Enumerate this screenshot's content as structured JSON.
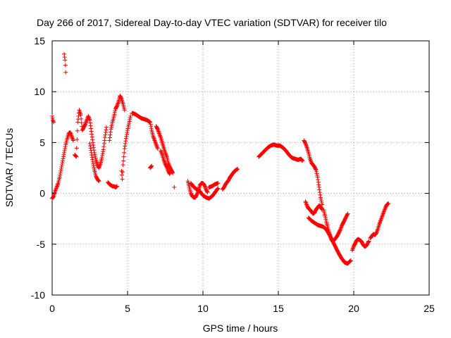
{
  "chart_data": {
    "type": "scatter",
    "title": "Day 266 of 2017, Sidereal Day-to-day VTEC variation (SDTVAR) for receiver tilo",
    "xlabel": "GPS time / hours",
    "ylabel": "SDTVAR / TECUs",
    "xlim": [
      0,
      25
    ],
    "ylim": [
      -10,
      15
    ],
    "xticks": [
      0,
      5,
      10,
      15,
      20,
      25
    ],
    "yticks": [
      -10,
      -5,
      0,
      5,
      10,
      15
    ],
    "grid": true,
    "marker": "+",
    "color": "#ff0000",
    "series": [
      {
        "name": "SDTVAR",
        "segments": [
          [
            [
              0.0,
              -0.5
            ],
            [
              0.1,
              -0.3
            ],
            [
              0.2,
              0.2
            ],
            [
              0.3,
              0.6
            ],
            [
              0.4,
              1.0
            ],
            [
              0.5,
              1.6
            ],
            [
              0.6,
              2.4
            ],
            [
              0.7,
              3.2
            ],
            [
              0.8,
              4.0
            ],
            [
              0.9,
              4.8
            ],
            [
              1.0,
              5.4
            ],
            [
              1.1,
              5.9
            ],
            [
              1.2,
              6.0
            ],
            [
              1.3,
              5.6
            ],
            [
              1.4,
              5.2
            ]
          ],
          [
            [
              0.0,
              7.6
            ],
            [
              0.05,
              7.2
            ],
            [
              0.1,
              7.0
            ]
          ],
          [
            [
              0.8,
              13.7
            ],
            [
              0.85,
              13.1
            ],
            [
              0.88,
              12.6
            ],
            [
              0.9,
              11.9
            ]
          ],
          [
            [
              1.5,
              3.8
            ],
            [
              1.6,
              3.6
            ],
            [
              1.7,
              7.0
            ],
            [
              1.8,
              8.2
            ],
            [
              1.9,
              7.7
            ],
            [
              2.0,
              6.2
            ],
            [
              2.2,
              6.8
            ],
            [
              2.4,
              7.6
            ],
            [
              2.5,
              7.2
            ],
            [
              2.6,
              6.1
            ],
            [
              2.7,
              5.0
            ],
            [
              2.8,
              4.0
            ],
            [
              2.9,
              3.3
            ],
            [
              3.0,
              2.8
            ],
            [
              3.1,
              2.5
            ],
            [
              3.2,
              2.9
            ],
            [
              3.3,
              3.5
            ],
            [
              3.4,
              4.3
            ],
            [
              3.5,
              5.5
            ],
            [
              3.6,
              6.5
            ]
          ],
          [
            [
              2.5,
              4.9
            ],
            [
              2.6,
              4.0
            ],
            [
              2.7,
              3.1
            ],
            [
              2.8,
              2.3
            ],
            [
              2.9,
              1.7
            ],
            [
              3.0,
              1.4
            ],
            [
              3.1,
              1.2
            ]
          ],
          [
            [
              3.7,
              1.1
            ],
            [
              3.8,
              0.9
            ],
            [
              3.9,
              0.8
            ],
            [
              4.0,
              0.7
            ],
            [
              4.1,
              0.7
            ],
            [
              4.2,
              0.6
            ],
            [
              4.3,
              0.7
            ]
          ],
          [
            [
              3.8,
              5.2
            ],
            [
              3.9,
              6.3
            ],
            [
              4.0,
              7.0
            ],
            [
              4.1,
              7.6
            ],
            [
              4.2,
              8.3
            ],
            [
              4.3,
              8.6
            ],
            [
              4.4,
              9.0
            ],
            [
              4.5,
              9.6
            ],
            [
              4.6,
              9.3
            ],
            [
              4.7,
              8.8
            ],
            [
              4.8,
              8.2
            ]
          ],
          [
            [
              4.6,
              2.2
            ],
            [
              4.65,
              1.4
            ],
            [
              4.7,
              2.8
            ],
            [
              4.75,
              3.6
            ],
            [
              4.8,
              4.4
            ],
            [
              4.9,
              5.4
            ],
            [
              5.0,
              6.2
            ],
            [
              5.1,
              6.9
            ],
            [
              5.2,
              7.6
            ]
          ],
          [
            [
              5.3,
              7.9
            ],
            [
              5.5,
              7.8
            ],
            [
              5.7,
              7.6
            ],
            [
              5.9,
              7.4
            ],
            [
              6.1,
              7.3
            ],
            [
              6.3,
              7.2
            ],
            [
              6.5,
              7.0
            ],
            [
              6.6,
              6.2
            ],
            [
              6.7,
              5.6
            ],
            [
              6.8,
              5.2
            ],
            [
              6.9,
              4.8
            ],
            [
              7.0,
              4.4
            ]
          ],
          [
            [
              6.5,
              2.5
            ],
            [
              6.6,
              2.7
            ]
          ],
          [
            [
              6.9,
              6.6
            ],
            [
              7.0,
              6.3
            ],
            [
              7.1,
              5.9
            ],
            [
              7.2,
              5.5
            ],
            [
              7.3,
              5.0
            ],
            [
              7.4,
              4.5
            ],
            [
              7.5,
              4.0
            ],
            [
              7.6,
              3.6
            ],
            [
              7.7,
              3.0
            ],
            [
              7.8,
              2.6
            ],
            [
              7.9,
              2.3
            ],
            [
              8.0,
              2.0
            ]
          ],
          [
            [
              7.2,
              4.2
            ],
            [
              7.3,
              3.8
            ],
            [
              7.4,
              3.3
            ],
            [
              7.5,
              2.9
            ],
            [
              7.6,
              2.6
            ],
            [
              7.7,
              2.2
            ],
            [
              7.8,
              1.9
            ]
          ],
          [
            [
              8.1,
              0.6
            ]
          ],
          [
            [
              9.0,
              1.2
            ],
            [
              9.1,
              0.6
            ],
            [
              9.2,
              0.0
            ],
            [
              9.3,
              -0.3
            ],
            [
              9.4,
              -0.4
            ],
            [
              9.5,
              -0.4
            ],
            [
              9.6,
              -0.1
            ],
            [
              9.7,
              0.3
            ],
            [
              9.8,
              0.8
            ],
            [
              9.9,
              1.0
            ],
            [
              10.0,
              1.0
            ],
            [
              10.1,
              0.8
            ],
            [
              10.2,
              0.4
            ],
            [
              10.3,
              0.1
            ]
          ],
          [
            [
              9.2,
              1.0
            ],
            [
              9.4,
              0.6
            ],
            [
              9.6,
              0.4
            ],
            [
              9.8,
              0.2
            ],
            [
              10.0,
              -0.2
            ],
            [
              10.2,
              -0.4
            ],
            [
              10.4,
              -0.5
            ],
            [
              10.6,
              -0.3
            ],
            [
              10.8,
              0.1
            ],
            [
              11.0,
              0.5
            ]
          ],
          [
            [
              10.4,
              0.6
            ],
            [
              10.6,
              0.7
            ],
            [
              10.8,
              0.9
            ],
            [
              11.0,
              1.0
            ]
          ],
          [
            [
              11.3,
              0.4
            ],
            [
              11.4,
              0.6
            ],
            [
              11.5,
              0.9
            ],
            [
              11.6,
              1.1
            ],
            [
              11.7,
              1.3
            ],
            [
              11.8,
              1.6
            ],
            [
              11.9,
              1.8
            ],
            [
              12.0,
              2.0
            ],
            [
              12.1,
              2.2
            ],
            [
              12.2,
              2.3
            ],
            [
              12.3,
              2.4
            ]
          ],
          [
            [
              13.7,
              3.6
            ],
            [
              13.9,
              3.9
            ],
            [
              14.1,
              4.2
            ],
            [
              14.3,
              4.5
            ],
            [
              14.5,
              4.7
            ],
            [
              14.7,
              4.8
            ],
            [
              14.9,
              4.7
            ],
            [
              15.1,
              4.7
            ],
            [
              15.3,
              4.5
            ],
            [
              15.5,
              4.2
            ],
            [
              15.7,
              3.8
            ],
            [
              15.9,
              3.5
            ],
            [
              16.1,
              3.4
            ],
            [
              16.3,
              3.3
            ],
            [
              16.5,
              3.4
            ],
            [
              16.6,
              3.2
            ]
          ],
          [
            [
              16.7,
              5.2
            ],
            [
              16.8,
              4.9
            ],
            [
              16.9,
              4.5
            ],
            [
              17.0,
              4.0
            ],
            [
              17.1,
              3.4
            ],
            [
              17.2,
              3.0
            ],
            [
              17.3,
              2.8
            ],
            [
              17.4,
              2.6
            ],
            [
              17.5,
              2.3
            ],
            [
              17.6,
              1.6
            ],
            [
              17.7,
              0.6
            ],
            [
              17.8,
              -0.4
            ],
            [
              17.9,
              -1.1
            ]
          ],
          [
            [
              16.8,
              -0.8
            ],
            [
              16.9,
              -1.2
            ],
            [
              17.0,
              -1.5
            ],
            [
              17.1,
              -1.6
            ],
            [
              17.2,
              -1.8
            ],
            [
              17.3,
              -2.0
            ],
            [
              17.4,
              -1.9
            ],
            [
              17.5,
              -1.6
            ],
            [
              17.6,
              -1.4
            ],
            [
              17.7,
              -1.2
            ],
            [
              17.8,
              -1.3
            ],
            [
              17.9,
              -1.6
            ]
          ],
          [
            [
              17.0,
              -2.4
            ],
            [
              17.2,
              -2.7
            ],
            [
              17.4,
              -2.9
            ],
            [
              17.6,
              -3.1
            ],
            [
              17.8,
              -3.2
            ],
            [
              18.0,
              -3.3
            ],
            [
              18.2,
              -3.6
            ],
            [
              18.4,
              -4.1
            ],
            [
              18.6,
              -4.7
            ],
            [
              18.8,
              -5.3
            ],
            [
              19.0,
              -5.9
            ],
            [
              19.2,
              -6.4
            ],
            [
              19.4,
              -6.8
            ],
            [
              19.6,
              -6.9
            ],
            [
              19.8,
              -6.6
            ]
          ],
          [
            [
              18.0,
              -1.6
            ],
            [
              18.1,
              -2.2
            ],
            [
              18.2,
              -2.9
            ],
            [
              18.3,
              -3.5
            ],
            [
              18.4,
              -4.0
            ],
            [
              18.5,
              -4.5
            ],
            [
              18.6,
              -4.7
            ],
            [
              18.7,
              -4.6
            ],
            [
              18.8,
              -4.4
            ],
            [
              18.9,
              -4.2
            ],
            [
              19.0,
              -3.9
            ],
            [
              19.1,
              -3.6
            ],
            [
              19.2,
              -3.2
            ],
            [
              19.3,
              -2.9
            ],
            [
              19.4,
              -2.6
            ],
            [
              19.5,
              -2.3
            ],
            [
              19.6,
              -2.0
            ]
          ],
          [
            [
              19.9,
              -5.6
            ],
            [
              20.0,
              -5.2
            ],
            [
              20.1,
              -4.9
            ],
            [
              20.2,
              -4.6
            ],
            [
              20.3,
              -4.5
            ],
            [
              20.4,
              -4.6
            ],
            [
              20.5,
              -4.7
            ],
            [
              20.6,
              -5.0
            ],
            [
              20.7,
              -5.2
            ],
            [
              20.8,
              -5.2
            ],
            [
              20.9,
              -5.0
            ],
            [
              21.0,
              -4.7
            ]
          ],
          [
            [
              21.1,
              -4.4
            ],
            [
              21.2,
              -4.2
            ],
            [
              21.3,
              -4.0
            ],
            [
              21.4,
              -4.1
            ],
            [
              21.5,
              -3.9
            ],
            [
              21.6,
              -3.5
            ],
            [
              21.7,
              -3.0
            ],
            [
              21.8,
              -2.6
            ],
            [
              21.9,
              -2.2
            ],
            [
              22.0,
              -1.8
            ],
            [
              22.1,
              -1.4
            ],
            [
              22.2,
              -1.1
            ],
            [
              22.3,
              -1.0
            ]
          ]
        ]
      }
    ]
  }
}
